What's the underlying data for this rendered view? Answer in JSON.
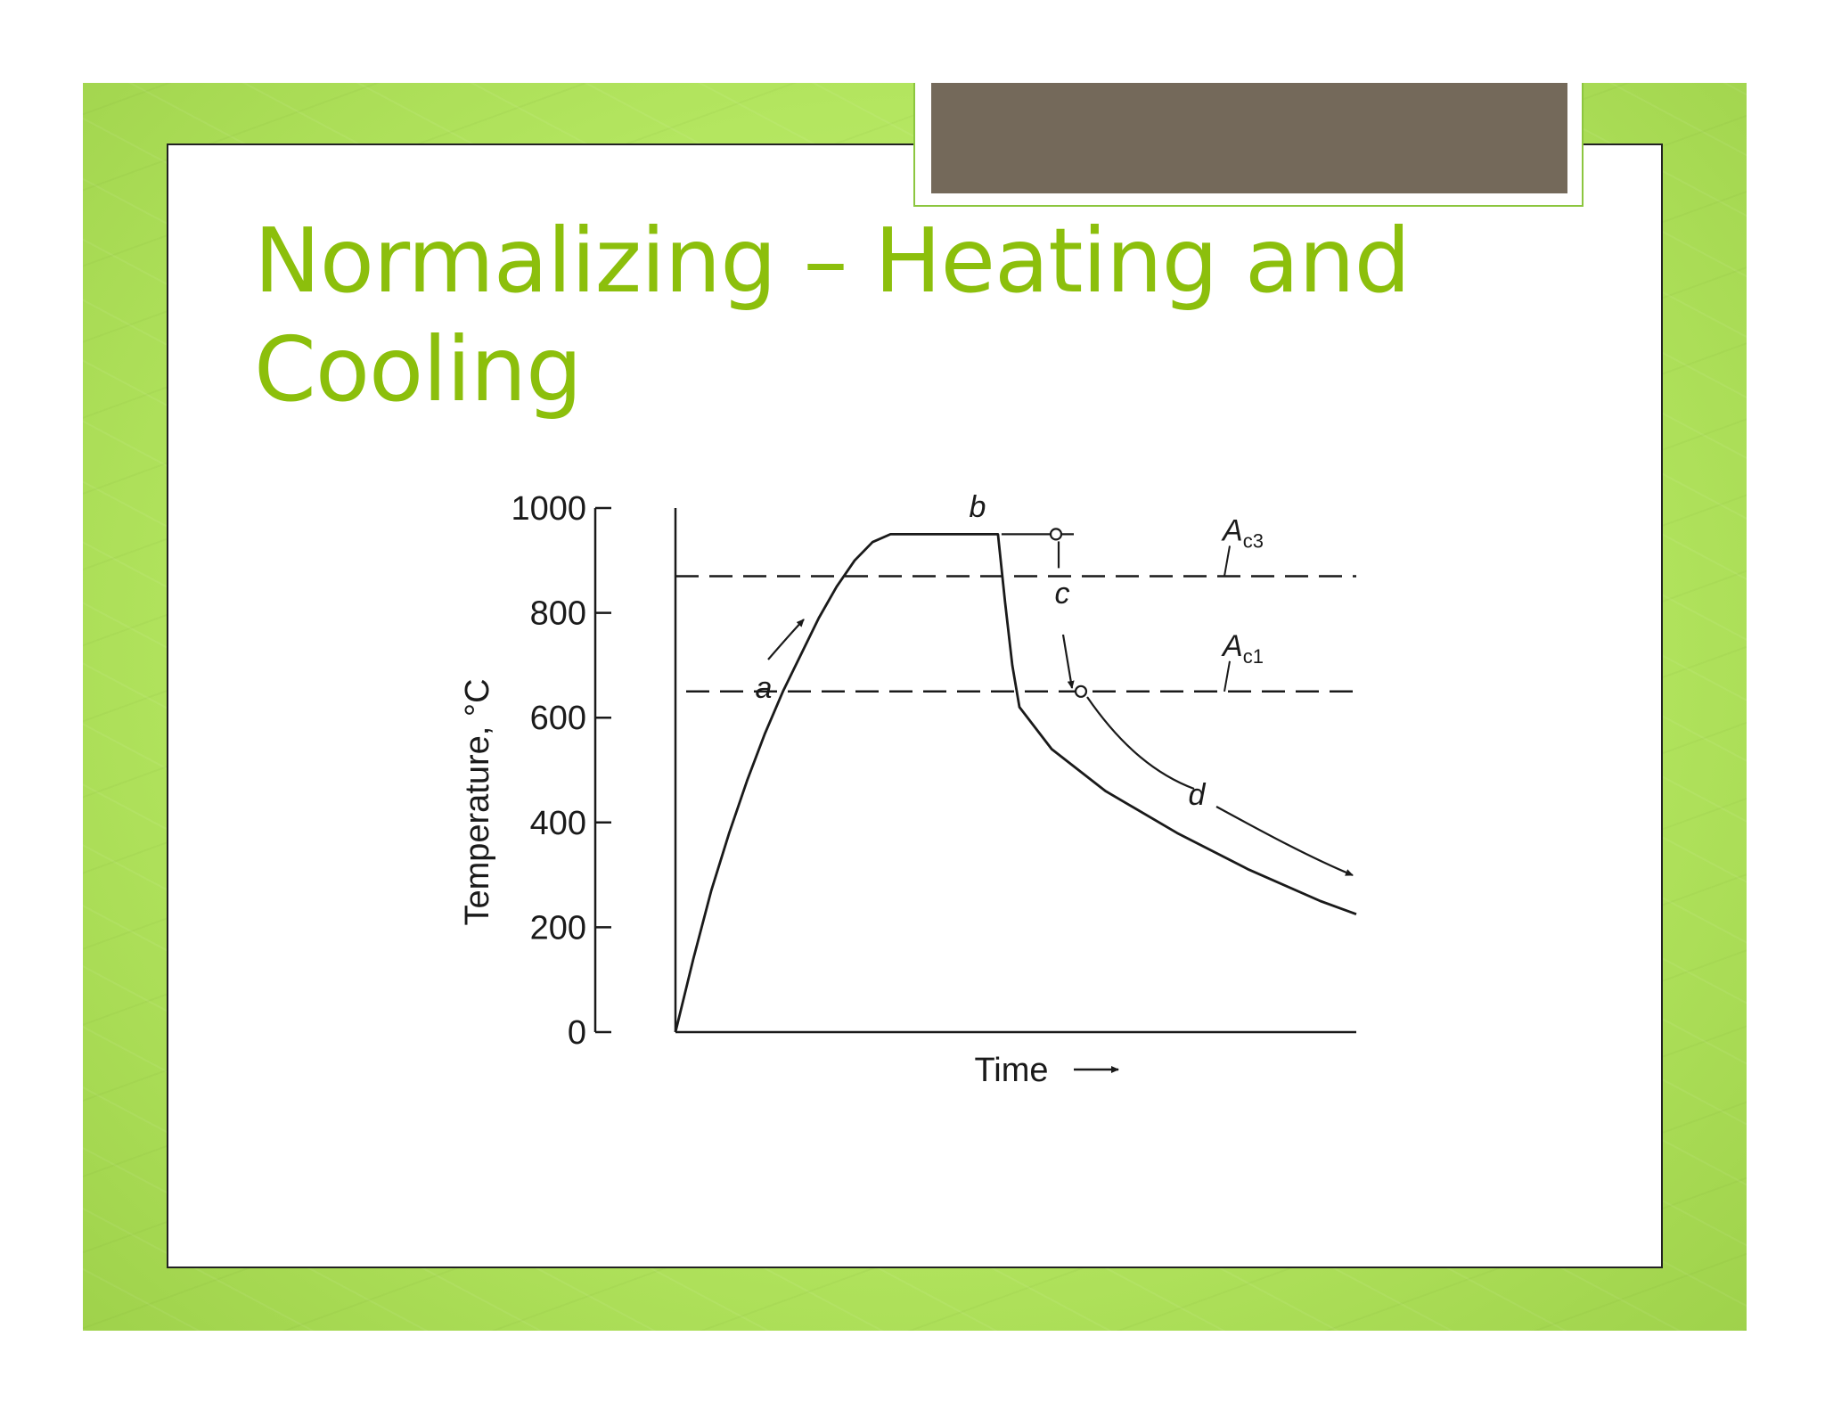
{
  "slide": {
    "title_lines": [
      "Normalizing – Heating and",
      "Cooling"
    ]
  },
  "colors": {
    "title": "#8cbf0c",
    "background_green": "#b4e660",
    "tab_fill": "#74695a",
    "curve": "#1a1a1a"
  },
  "chart_data": {
    "type": "line",
    "xlabel": "Time",
    "ylabel": "Temperature, °C",
    "ylim": [
      0,
      1000
    ],
    "yticks": [
      "0",
      "200",
      "400",
      "600",
      "800",
      "1000"
    ],
    "grid": false,
    "reference_lines": [
      {
        "label": "A",
        "subscript": "c3",
        "y": 870
      },
      {
        "label": "A",
        "subscript": "c1",
        "y": 650
      }
    ],
    "curve_labels": [
      "a",
      "b",
      "c",
      "d"
    ],
    "series": [
      {
        "values_description_hidden": true,
        "points": [
          [
            0,
            0
          ],
          [
            0.5,
            140
          ],
          [
            1,
            270
          ],
          [
            1.5,
            380
          ],
          [
            2,
            480
          ],
          [
            2.5,
            570
          ],
          [
            3,
            650
          ],
          [
            3.5,
            720
          ],
          [
            4,
            790
          ],
          [
            4.5,
            850
          ],
          [
            5,
            900
          ],
          [
            5.5,
            935
          ],
          [
            6,
            950
          ],
          [
            9,
            950
          ],
          [
            9.2,
            820
          ],
          [
            9.4,
            700
          ],
          [
            9.6,
            620
          ],
          [
            10.5,
            540
          ],
          [
            12,
            460
          ],
          [
            14,
            380
          ],
          [
            16,
            310
          ],
          [
            18,
            250
          ],
          [
            19,
            225
          ]
        ]
      }
    ]
  }
}
